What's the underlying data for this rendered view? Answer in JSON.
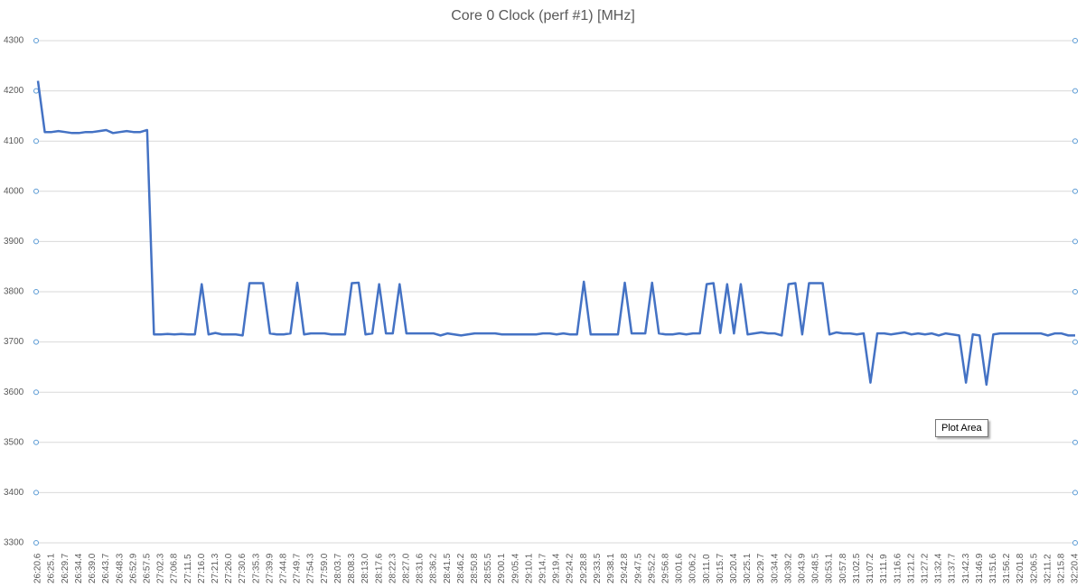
{
  "chart_data": {
    "type": "line",
    "title": "Core 0 Clock (perf #1) [MHz]",
    "categories": [
      "26:20.6",
      null,
      "26:25.1",
      null,
      "26:29.7",
      null,
      "26:34.4",
      null,
      "26:39.0",
      null,
      "26:43.7",
      null,
      "26:48.3",
      null,
      "26:52.9",
      null,
      "26:57.5",
      null,
      "27:02.3",
      null,
      "27:06.8",
      null,
      "27:11.5",
      null,
      "27:16.0",
      null,
      "27:21.3",
      null,
      "27:26.0",
      null,
      "27:30.6",
      null,
      "27:35.3",
      null,
      "27:39.9",
      null,
      "27:44.8",
      null,
      "27:49.7",
      null,
      "27:54.3",
      null,
      "27:59.0",
      null,
      "28:03.7",
      null,
      "28:08.3",
      null,
      "28:13.0",
      null,
      "28:17.6",
      null,
      "28:22.3",
      null,
      "28:27.0",
      null,
      "28:31.6",
      null,
      "28:36.2",
      null,
      "28:41.5",
      null,
      "28:46.2",
      null,
      "28:50.8",
      null,
      "28:55.5",
      null,
      "29:00.1",
      null,
      "29:05.4",
      null,
      "29:10.1",
      null,
      "29:14.7",
      null,
      "29:19.4",
      null,
      "29:24.2",
      null,
      "29:28.8",
      null,
      "29:33.5",
      null,
      "29:38.1",
      null,
      "29:42.8",
      null,
      "29:47.5",
      null,
      "29:52.2",
      null,
      "29:56.8",
      null,
      "30:01.6",
      null,
      "30:06.2",
      null,
      "30:11.0",
      null,
      "30:15.7",
      null,
      "30:20.4",
      null,
      "30:25.1",
      null,
      "30:29.7",
      null,
      "30:34.4",
      null,
      "30:39.2",
      null,
      "30:43.9",
      null,
      "30:48.5",
      null,
      "30:53.1",
      null,
      "30:57.8",
      null,
      "31:02.5",
      null,
      "31:07.2",
      null,
      "31:11.9",
      null,
      "31:16.6",
      null,
      "31:21.2",
      null,
      "31:27.2",
      null,
      "31:32.4",
      null,
      "31:37.7",
      null,
      "31:42.3",
      null,
      "31:46.9",
      null,
      "31:51.6",
      null,
      "31:56.2",
      null,
      "32:01.8",
      null,
      "32:06.5",
      null,
      "32:11.2",
      null,
      "32:15.8",
      null,
      "32:20.4"
    ],
    "values": [
      4220,
      4118,
      4118,
      4120,
      4118,
      4116,
      4116,
      4118,
      4118,
      4120,
      4122,
      4116,
      4118,
      4120,
      4118,
      4118,
      4122,
      3715,
      3715,
      3716,
      3715,
      3716,
      3715,
      3715,
      3815,
      3715,
      3718,
      3715,
      3715,
      3715,
      3713,
      3817,
      3817,
      3817,
      3717,
      3715,
      3715,
      3717,
      3818,
      3715,
      3717,
      3717,
      3717,
      3715,
      3715,
      3715,
      3817,
      3818,
      3715,
      3717,
      3815,
      3717,
      3717,
      3815,
      3717,
      3717,
      3717,
      3717,
      3717,
      3713,
      3717,
      3715,
      3713,
      3715,
      3717,
      3717,
      3717,
      3717,
      3715,
      3715,
      3715,
      3715,
      3715,
      3715,
      3717,
      3717,
      3715,
      3717,
      3715,
      3715,
      3820,
      3715,
      3715,
      3715,
      3715,
      3715,
      3818,
      3717,
      3717,
      3717,
      3818,
      3717,
      3715,
      3715,
      3717,
      3715,
      3717,
      3717,
      3815,
      3817,
      3718,
      3815,
      3717,
      3815,
      3715,
      3717,
      3719,
      3717,
      3717,
      3713,
      3815,
      3817,
      3715,
      3817,
      3817,
      3817,
      3715,
      3719,
      3717,
      3717,
      3715,
      3717,
      3619,
      3717,
      3717,
      3715,
      3717,
      3719,
      3715,
      3717,
      3715,
      3717,
      3713,
      3717,
      3715,
      3713,
      3619,
      3715,
      3713,
      3615,
      3715,
      3717,
      3717,
      3717,
      3717,
      3717,
      3717,
      3717,
      3713,
      3717,
      3717,
      3713,
      3713
    ],
    "color": "#4472c4",
    "ylim": [
      3300,
      4300
    ],
    "yticks": [
      3300,
      3400,
      3500,
      3600,
      3700,
      3800,
      3900,
      4000,
      4100,
      4200,
      4300
    ],
    "grid": true
  },
  "tooltip": "Plot Area"
}
